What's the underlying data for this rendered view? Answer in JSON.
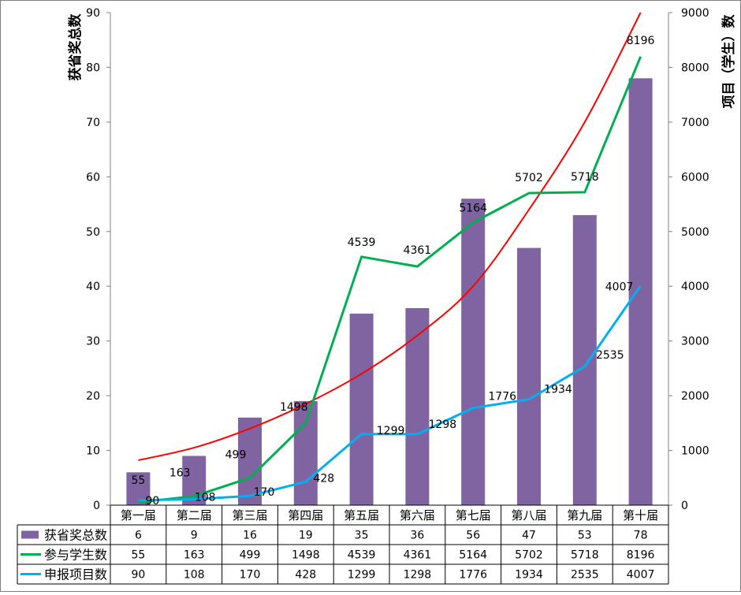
{
  "chart_data": {
    "type": "bar",
    "categories": [
      "第一届",
      "第二届",
      "第三届",
      "第四届",
      "第五届",
      "第六届",
      "第七届",
      "第八届",
      "第九届",
      "第十届"
    ],
    "ylabel_left": "获省奖总数",
    "ylabel_right": "项目（学生）数",
    "ylim_left": [
      0,
      90
    ],
    "ylim_right": [
      0,
      9000
    ],
    "yticks_left": [
      0,
      10,
      20,
      30,
      40,
      50,
      60,
      70,
      80,
      90
    ],
    "yticks_right": [
      0,
      1000,
      2000,
      3000,
      4000,
      5000,
      6000,
      7000,
      8000,
      9000
    ],
    "grid": false,
    "legend": "table-left",
    "series": [
      {
        "name": "获省奖总数",
        "type": "bar",
        "axis": "left",
        "color": "#8064A2",
        "values": [
          6,
          9,
          16,
          19,
          35,
          36,
          56,
          47,
          53,
          78
        ]
      },
      {
        "name": "参与学生数",
        "type": "line",
        "axis": "right",
        "color": "#00B050",
        "values": [
          55,
          163,
          499,
          1498,
          4539,
          4361,
          5164,
          5702,
          5718,
          8196
        ],
        "labels": [
          "55",
          "163",
          "499",
          "1498",
          "4539",
          "4361",
          "5164",
          "5702",
          "5718",
          "8196"
        ]
      },
      {
        "name": "申报项目数",
        "type": "line",
        "axis": "right",
        "color": "#00B0F0",
        "values": [
          90,
          108,
          170,
          428,
          1299,
          1298,
          1776,
          1934,
          2535,
          4007
        ],
        "labels": [
          "90",
          "108",
          "170",
          "428",
          "1299",
          "1298",
          "1776",
          "1934",
          "2535",
          "4007"
        ]
      }
    ],
    "trendline": {
      "type": "exponential",
      "axis": "right",
      "color": "#FF0000",
      "values": [
        820,
        1050,
        1400,
        1850,
        2400,
        3100,
        4000,
        5400,
        7000,
        9000
      ]
    }
  }
}
